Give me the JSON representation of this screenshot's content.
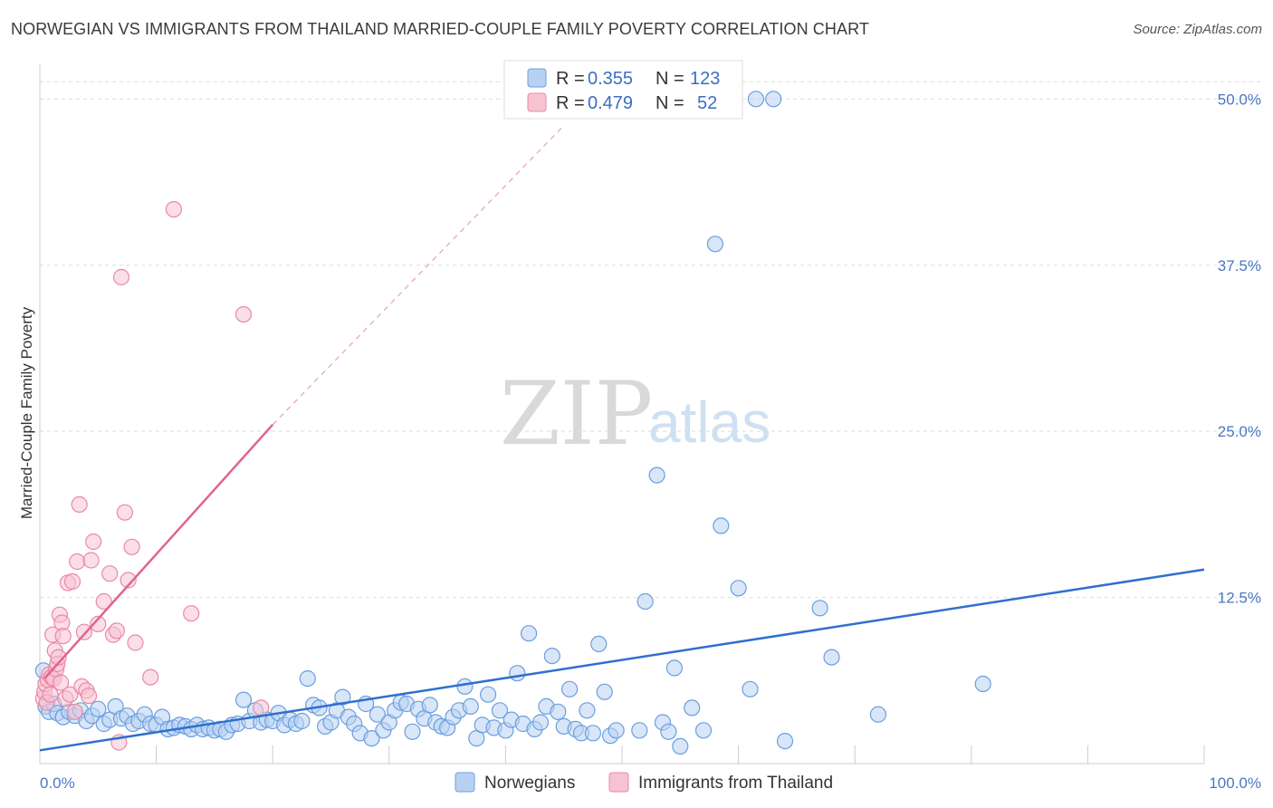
{
  "title": "NORWEGIAN VS IMMIGRANTS FROM THAILAND MARRIED-COUPLE FAMILY POVERTY CORRELATION CHART",
  "source": "Source: ZipAtlas.com",
  "watermark": {
    "zip": "ZIP",
    "atlas": "atlas"
  },
  "chart_data": {
    "type": "scatter",
    "ylabel": "Married-Couple Family Poverty",
    "xlim": [
      0,
      100
    ],
    "ylim": [
      0,
      52
    ],
    "x_tick_labels": [
      {
        "v": 0,
        "label": "0.0%"
      },
      {
        "v": 100,
        "label": "100.0%"
      }
    ],
    "y_tick_labels": [
      {
        "v": 12.5,
        "label": "12.5%"
      },
      {
        "v": 25,
        "label": "25.0%"
      },
      {
        "v": 37.5,
        "label": "37.5%"
      },
      {
        "v": 50,
        "label": "50.0%"
      }
    ],
    "grid": true,
    "legend": {
      "placement": "top-center",
      "entries": [
        {
          "r_label": "R =",
          "r": "0.355",
          "n_label": "N =",
          "n": "123"
        },
        {
          "r_label": "R =",
          "r": "0.479",
          "n_label": "N =",
          "n": "52"
        }
      ]
    },
    "series": [
      {
        "name": "Norwegians",
        "color": "#6a9ee0",
        "fill": "#b8d1f2",
        "trend": {
          "x": [
            0,
            100
          ],
          "y": [
            1.0,
            14.6
          ]
        },
        "points": [
          [
            0.3,
            7.0
          ],
          [
            0.5,
            4.3
          ],
          [
            0.8,
            3.9
          ],
          [
            1.2,
            4.5
          ],
          [
            1.5,
            3.8
          ],
          [
            2.0,
            3.5
          ],
          [
            2.5,
            3.9
          ],
          [
            3.0,
            3.6
          ],
          [
            3.5,
            4.0
          ],
          [
            4.0,
            3.2
          ],
          [
            4.5,
            3.6
          ],
          [
            5.0,
            4.1
          ],
          [
            5.5,
            3.0
          ],
          [
            6.0,
            3.3
          ],
          [
            6.5,
            4.3
          ],
          [
            7.0,
            3.4
          ],
          [
            7.5,
            3.6
          ],
          [
            8.0,
            3.0
          ],
          [
            8.5,
            3.2
          ],
          [
            9.0,
            3.7
          ],
          [
            9.5,
            3.0
          ],
          [
            10.0,
            2.9
          ],
          [
            10.5,
            3.5
          ],
          [
            11.0,
            2.6
          ],
          [
            11.5,
            2.7
          ],
          [
            12.0,
            2.9
          ],
          [
            12.5,
            2.8
          ],
          [
            13.0,
            2.6
          ],
          [
            13.5,
            2.9
          ],
          [
            14.0,
            2.6
          ],
          [
            14.5,
            2.7
          ],
          [
            15.0,
            2.5
          ],
          [
            15.5,
            2.6
          ],
          [
            16.0,
            2.4
          ],
          [
            16.5,
            2.9
          ],
          [
            17.0,
            3.0
          ],
          [
            17.5,
            4.8
          ],
          [
            18.0,
            3.2
          ],
          [
            18.5,
            4.0
          ],
          [
            19.0,
            3.1
          ],
          [
            19.5,
            3.3
          ],
          [
            20.0,
            3.2
          ],
          [
            20.5,
            3.8
          ],
          [
            21.0,
            2.9
          ],
          [
            21.5,
            3.3
          ],
          [
            22.0,
            3.0
          ],
          [
            22.5,
            3.2
          ],
          [
            23.0,
            6.4
          ],
          [
            23.5,
            4.4
          ],
          [
            24.0,
            4.2
          ],
          [
            24.5,
            2.8
          ],
          [
            25.0,
            3.1
          ],
          [
            25.5,
            4.0
          ],
          [
            26.0,
            5.0
          ],
          [
            26.5,
            3.5
          ],
          [
            27.0,
            3.0
          ],
          [
            27.5,
            2.3
          ],
          [
            28.0,
            4.5
          ],
          [
            28.5,
            1.9
          ],
          [
            29.0,
            3.7
          ],
          [
            29.5,
            2.5
          ],
          [
            30.0,
            3.1
          ],
          [
            30.5,
            4.0
          ],
          [
            31.0,
            4.6
          ],
          [
            31.5,
            4.5
          ],
          [
            32.0,
            2.4
          ],
          [
            32.5,
            4.1
          ],
          [
            33.0,
            3.4
          ],
          [
            33.5,
            4.4
          ],
          [
            34.0,
            3.1
          ],
          [
            34.5,
            2.8
          ],
          [
            35.0,
            2.7
          ],
          [
            35.5,
            3.5
          ],
          [
            36.0,
            4.0
          ],
          [
            36.5,
            5.8
          ],
          [
            37.0,
            4.3
          ],
          [
            37.5,
            1.9
          ],
          [
            38.0,
            2.9
          ],
          [
            38.5,
            5.2
          ],
          [
            39.0,
            2.7
          ],
          [
            39.5,
            4.0
          ],
          [
            40.0,
            2.5
          ],
          [
            40.5,
            3.3
          ],
          [
            41.0,
            6.8
          ],
          [
            41.5,
            3.0
          ],
          [
            42.0,
            9.8
          ],
          [
            42.5,
            2.6
          ],
          [
            43.0,
            3.1
          ],
          [
            43.5,
            4.3
          ],
          [
            44.0,
            8.1
          ],
          [
            44.5,
            3.9
          ],
          [
            45.0,
            2.8
          ],
          [
            45.5,
            5.6
          ],
          [
            46.0,
            2.6
          ],
          [
            46.5,
            2.3
          ],
          [
            47.0,
            4.0
          ],
          [
            47.5,
            2.3
          ],
          [
            48.0,
            9.0
          ],
          [
            48.5,
            5.4
          ],
          [
            49.0,
            2.1
          ],
          [
            49.5,
            2.5
          ],
          [
            51.5,
            2.5
          ],
          [
            52.0,
            12.2
          ],
          [
            53.0,
            21.7
          ],
          [
            53.5,
            3.1
          ],
          [
            54.0,
            2.4
          ],
          [
            54.5,
            7.2
          ],
          [
            55.0,
            1.3
          ],
          [
            56.0,
            4.2
          ],
          [
            57.0,
            2.5
          ],
          [
            58.0,
            39.1
          ],
          [
            58.5,
            17.9
          ],
          [
            60.0,
            13.2
          ],
          [
            61.0,
            5.6
          ],
          [
            61.5,
            50.0
          ],
          [
            63.0,
            50.0
          ],
          [
            64.0,
            1.7
          ],
          [
            67.0,
            11.7
          ],
          [
            68.0,
            8.0
          ],
          [
            72.0,
            3.7
          ],
          [
            81.0,
            6.0
          ]
        ]
      },
      {
        "name": "Immigrants from Thailand",
        "color": "#e889a6",
        "fill": "#f7c3d3",
        "trend": {
          "x": [
            0.4,
            20.0
          ],
          "y": [
            6.4,
            25.5
          ]
        },
        "trend_dashed": {
          "x": [
            20.0,
            45.0
          ],
          "y": [
            25.5,
            48.0
          ]
        },
        "points": [
          [
            0.3,
            4.9
          ],
          [
            0.4,
            5.4
          ],
          [
            0.5,
            6.0
          ],
          [
            0.6,
            4.6
          ],
          [
            0.7,
            6.3
          ],
          [
            0.8,
            6.7
          ],
          [
            0.9,
            5.2
          ],
          [
            1.0,
            6.5
          ],
          [
            1.1,
            9.7
          ],
          [
            1.2,
            6.4
          ],
          [
            1.3,
            8.5
          ],
          [
            1.4,
            7.1
          ],
          [
            1.5,
            7.5
          ],
          [
            1.6,
            8.0
          ],
          [
            1.7,
            11.2
          ],
          [
            1.8,
            6.1
          ],
          [
            1.9,
            10.6
          ],
          [
            2.0,
            9.6
          ],
          [
            2.2,
            4.9
          ],
          [
            2.4,
            13.6
          ],
          [
            2.6,
            5.2
          ],
          [
            2.8,
            13.7
          ],
          [
            3.0,
            3.9
          ],
          [
            3.2,
            15.2
          ],
          [
            3.4,
            19.5
          ],
          [
            3.6,
            5.8
          ],
          [
            3.8,
            9.9
          ],
          [
            4.0,
            5.5
          ],
          [
            4.2,
            5.1
          ],
          [
            4.4,
            15.3
          ],
          [
            4.6,
            16.7
          ],
          [
            5.0,
            10.5
          ],
          [
            5.5,
            12.2
          ],
          [
            6.0,
            14.3
          ],
          [
            6.3,
            9.7
          ],
          [
            6.6,
            10.0
          ],
          [
            6.8,
            1.6
          ],
          [
            7.0,
            36.6
          ],
          [
            7.3,
            18.9
          ],
          [
            7.6,
            13.8
          ],
          [
            7.9,
            16.3
          ],
          [
            8.2,
            9.1
          ],
          [
            9.5,
            6.5
          ],
          [
            11.5,
            41.7
          ],
          [
            13.0,
            11.3
          ],
          [
            17.5,
            33.8
          ],
          [
            19.0,
            4.2
          ]
        ]
      }
    ]
  },
  "bottom_legend": [
    {
      "label": "Norwegians"
    },
    {
      "label": "Immigrants from Thailand"
    }
  ]
}
